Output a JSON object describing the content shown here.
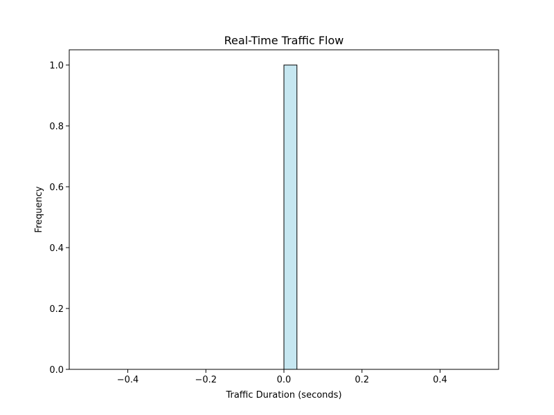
{
  "chart_data": {
    "type": "bar",
    "title": "Real-Time Traffic Flow",
    "xlabel": "Traffic Duration (seconds)",
    "ylabel": "Frequency",
    "xlim": [
      -0.55,
      0.55
    ],
    "ylim": [
      0,
      1.05
    ],
    "x_ticks": [
      -0.4,
      -0.2,
      0.0,
      0.2,
      0.4
    ],
    "x_tick_labels": [
      "−0.4",
      "−0.2",
      "0.0",
      "0.2",
      "0.4"
    ],
    "y_ticks": [
      0.0,
      0.2,
      0.4,
      0.6,
      0.8,
      1.0
    ],
    "y_tick_labels": [
      "0.0",
      "0.2",
      "0.4",
      "0.6",
      "0.8",
      "1.0"
    ],
    "bin_range": [
      -0.5,
      0.5
    ],
    "bins": 30,
    "counts": [
      0,
      0,
      0,
      0,
      0,
      0,
      0,
      0,
      0,
      0,
      0,
      0,
      0,
      0,
      0,
      1,
      0,
      0,
      0,
      0,
      0,
      0,
      0,
      0,
      0,
      0,
      0,
      0,
      0,
      0
    ],
    "bar_color": "#c6e7f1",
    "bar_edge_color": "#000000",
    "grid": false,
    "legend": false
  }
}
